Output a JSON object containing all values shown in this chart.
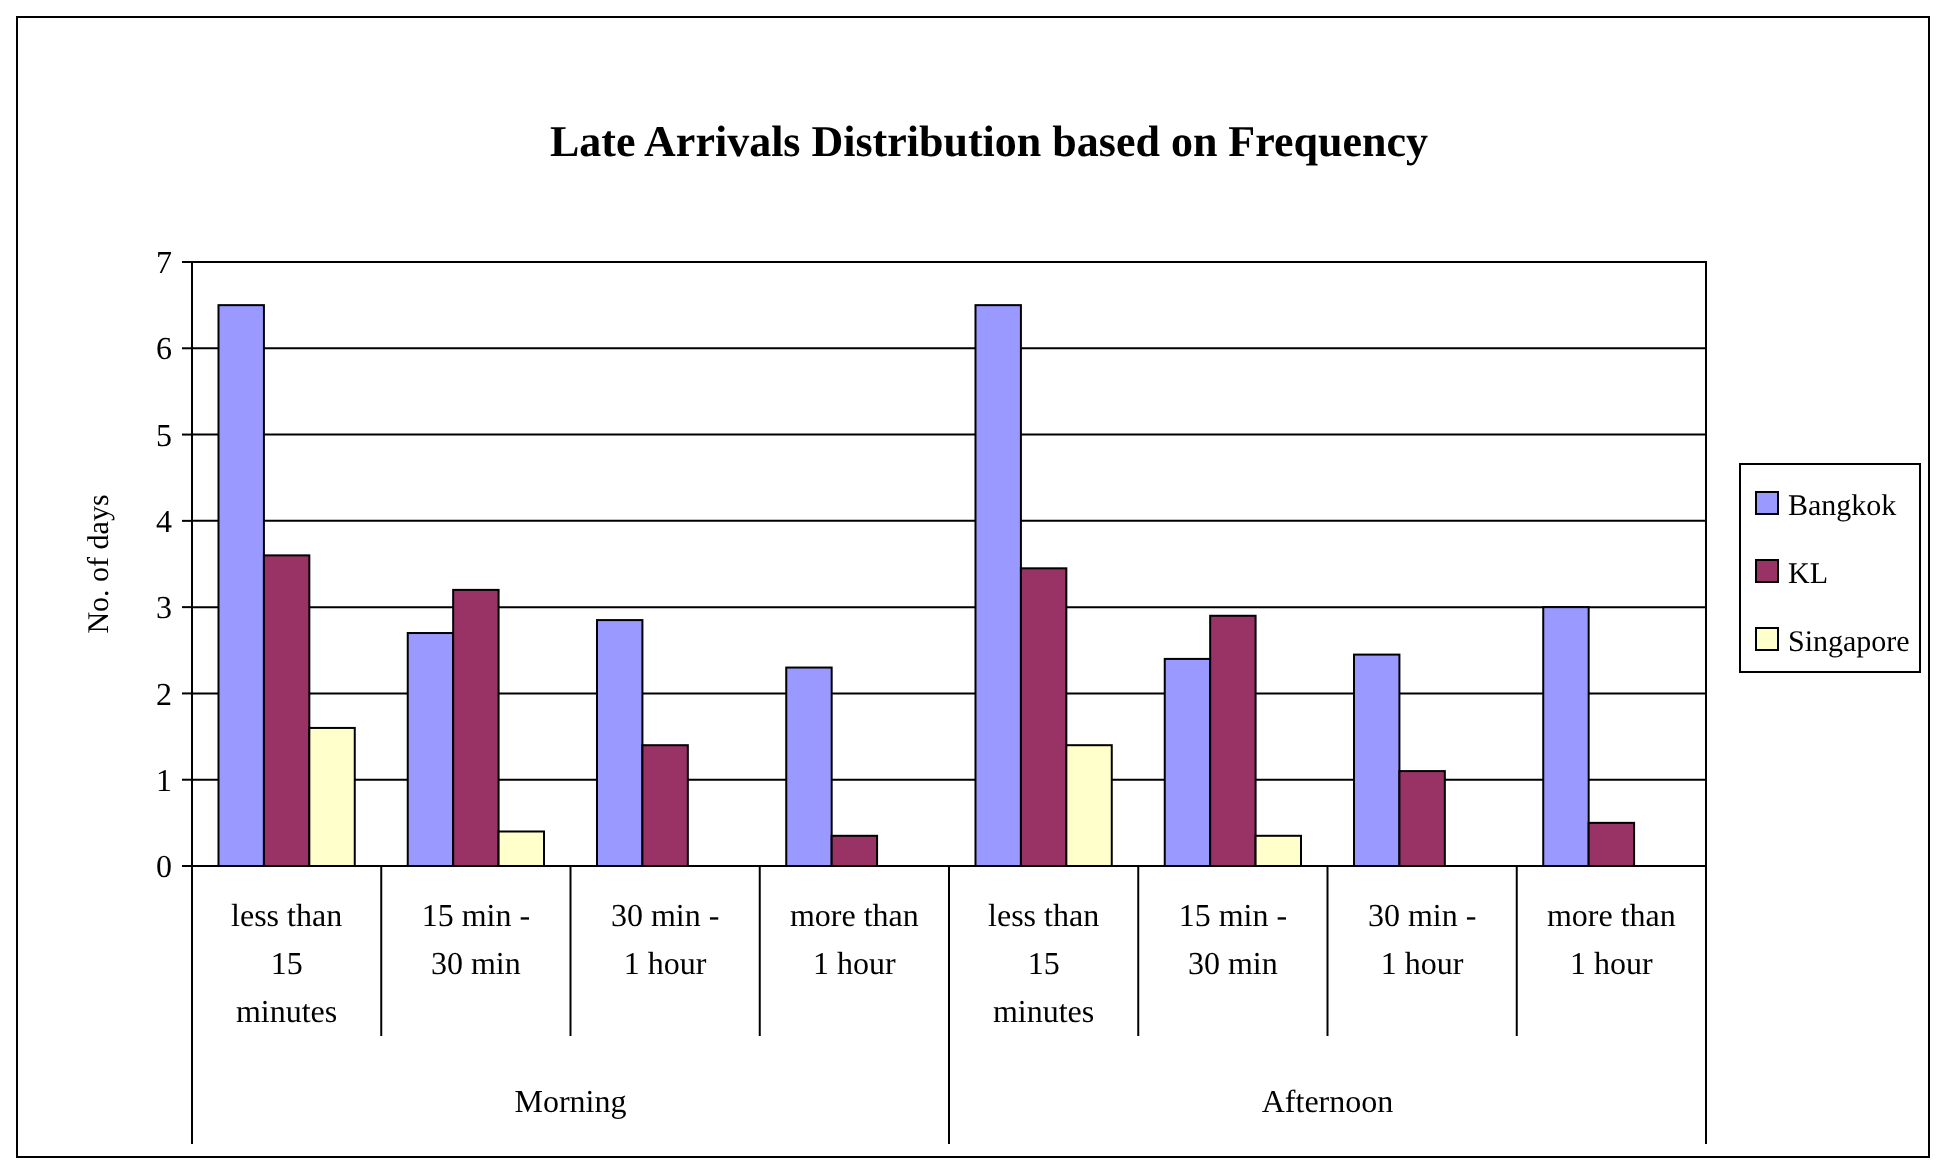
{
  "chart_data": {
    "type": "bar",
    "title": "Late Arrivals Distribution based on Frequency",
    "ylabel": "No. of days",
    "categories": [
      "less than 15 minutes",
      "15 min - 30 min",
      "30 min - 1 hour",
      "more than 1 hour",
      "less than 15 minutes",
      "15 min - 30 min",
      "30 min - 1 hour",
      "more than 1 hour"
    ],
    "annotations": [
      "Morning",
      "Afternoon"
    ],
    "series": [
      {
        "name": "Bangkok",
        "color": "#9999ff",
        "values": [
          6.5,
          2.7,
          2.85,
          2.3,
          6.5,
          2.4,
          2.45,
          3.0
        ]
      },
      {
        "name": "KL",
        "color": "#993366",
        "values": [
          3.6,
          3.2,
          1.4,
          0.35,
          3.45,
          2.9,
          1.1,
          0.5
        ]
      },
      {
        "name": "Singapore",
        "color": "#ffffcc",
        "values": [
          1.6,
          0.4,
          0,
          0,
          1.4,
          0.35,
          0,
          0
        ]
      }
    ],
    "ylim": [
      0,
      7
    ],
    "yticks": [
      0,
      1,
      2,
      3,
      4,
      5,
      6,
      7
    ],
    "grid": "y",
    "legend": "right"
  }
}
